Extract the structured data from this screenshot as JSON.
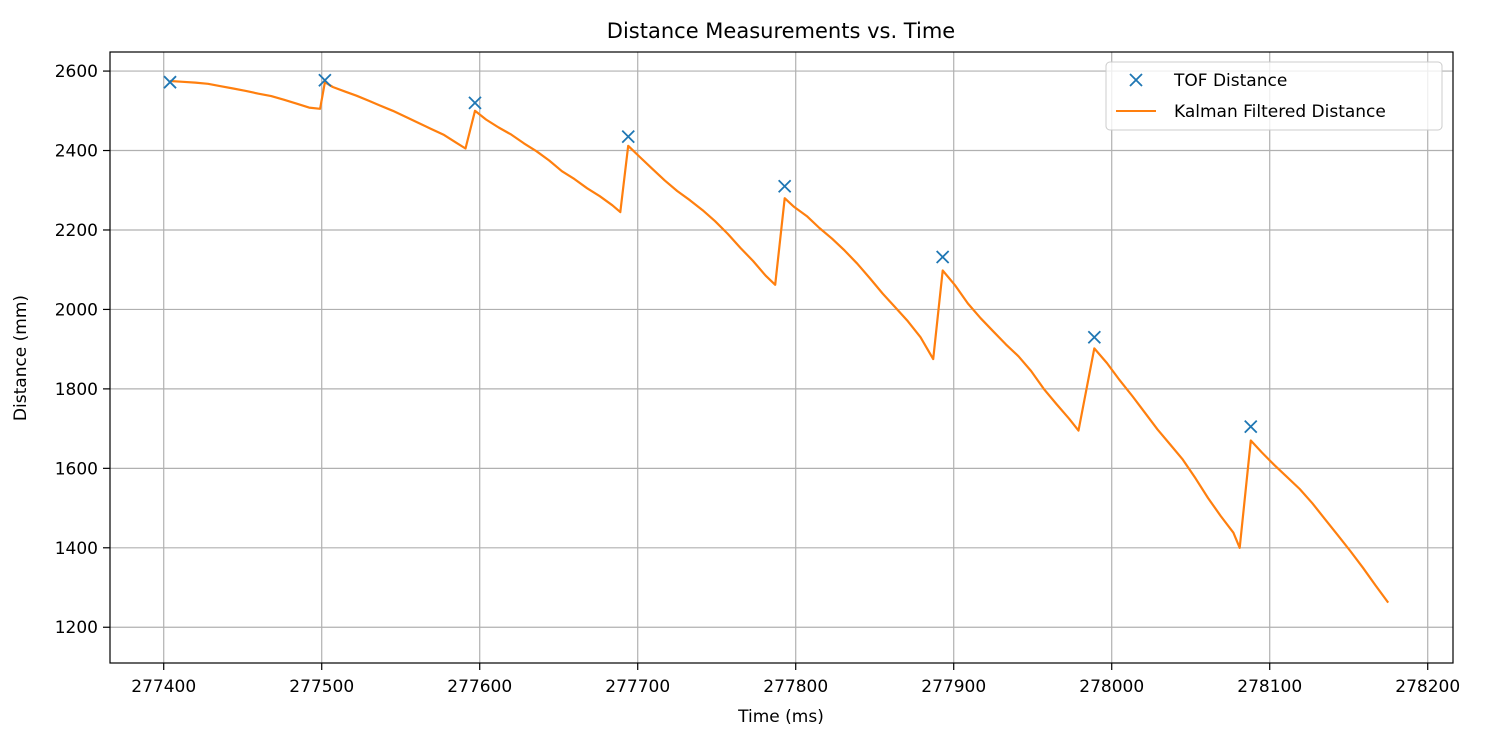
{
  "chart_data": {
    "type": "line",
    "title": "Distance Measurements vs. Time",
    "xlabel": "Time (ms)",
    "ylabel": "Distance (mm)",
    "xlim": [
      277366,
      278216
    ],
    "ylim": [
      1110,
      2648
    ],
    "xticks": [
      277400,
      277500,
      277600,
      277700,
      277800,
      277900,
      278000,
      278100,
      278200
    ],
    "yticks": [
      1200,
      1400,
      1600,
      1800,
      2000,
      2200,
      2400,
      2600
    ],
    "grid": true,
    "legend": "top-right",
    "series": [
      {
        "name": "TOF Distance",
        "style": "markers-x",
        "color": "#1f77b4",
        "x": [
          277404,
          277502,
          277597,
          277694,
          277793,
          277893,
          277989,
          278088
        ],
        "y": [
          2572,
          2577,
          2520,
          2435,
          2310,
          2132,
          1930,
          1705
        ]
      },
      {
        "name": "Kalman Filtered Distance",
        "style": "line",
        "color": "#ff7f0e",
        "x": [
          277404,
          277412,
          277420,
          277428,
          277436,
          277444,
          277452,
          277460,
          277468,
          277476,
          277484,
          277492,
          277499,
          277502,
          277507,
          277515,
          277522,
          277530,
          277537,
          277545,
          277553,
          277561,
          277569,
          277577,
          277585,
          277591,
          277597,
          277604,
          277612,
          277620,
          277628,
          277636,
          277644,
          277652,
          277660,
          277668,
          277676,
          277684,
          277689,
          277694,
          277701,
          277709,
          277717,
          277725,
          277733,
          277741,
          277749,
          277757,
          277765,
          277773,
          277781,
          277787,
          277793,
          277799,
          277807,
          277815,
          277823,
          277831,
          277839,
          277847,
          277855,
          277863,
          277871,
          277879,
          277887,
          277893,
          277901,
          277909,
          277917,
          277925,
          277933,
          277941,
          277949,
          277957,
          277965,
          277973,
          277979,
          277989,
          277997,
          278005,
          278013,
          278021,
          278029,
          278037,
          278045,
          278053,
          278061,
          278069,
          278077,
          278081,
          278088,
          278095,
          278103,
          278111,
          278119,
          278127,
          278135,
          278143,
          278151,
          278159,
          278167,
          278175
        ],
        "y": [
          2575,
          2573,
          2571,
          2568,
          2562,
          2556,
          2550,
          2543,
          2537,
          2528,
          2518,
          2508,
          2505,
          2572,
          2560,
          2548,
          2538,
          2525,
          2513,
          2500,
          2485,
          2470,
          2455,
          2440,
          2420,
          2405,
          2500,
          2478,
          2458,
          2440,
          2418,
          2398,
          2375,
          2348,
          2328,
          2305,
          2285,
          2262,
          2245,
          2412,
          2385,
          2355,
          2325,
          2298,
          2275,
          2250,
          2222,
          2190,
          2155,
          2122,
          2085,
          2062,
          2280,
          2258,
          2235,
          2205,
          2178,
          2148,
          2115,
          2078,
          2040,
          2005,
          1970,
          1930,
          1875,
          2098,
          2060,
          2015,
          1978,
          1945,
          1912,
          1882,
          1845,
          1800,
          1762,
          1725,
          1695,
          1902,
          1865,
          1822,
          1782,
          1740,
          1698,
          1660,
          1622,
          1575,
          1525,
          1480,
          1438,
          1400,
          1670,
          1640,
          1608,
          1578,
          1548,
          1512,
          1472,
          1432,
          1392,
          1350,
          1305,
          1262
        ]
      }
    ]
  }
}
